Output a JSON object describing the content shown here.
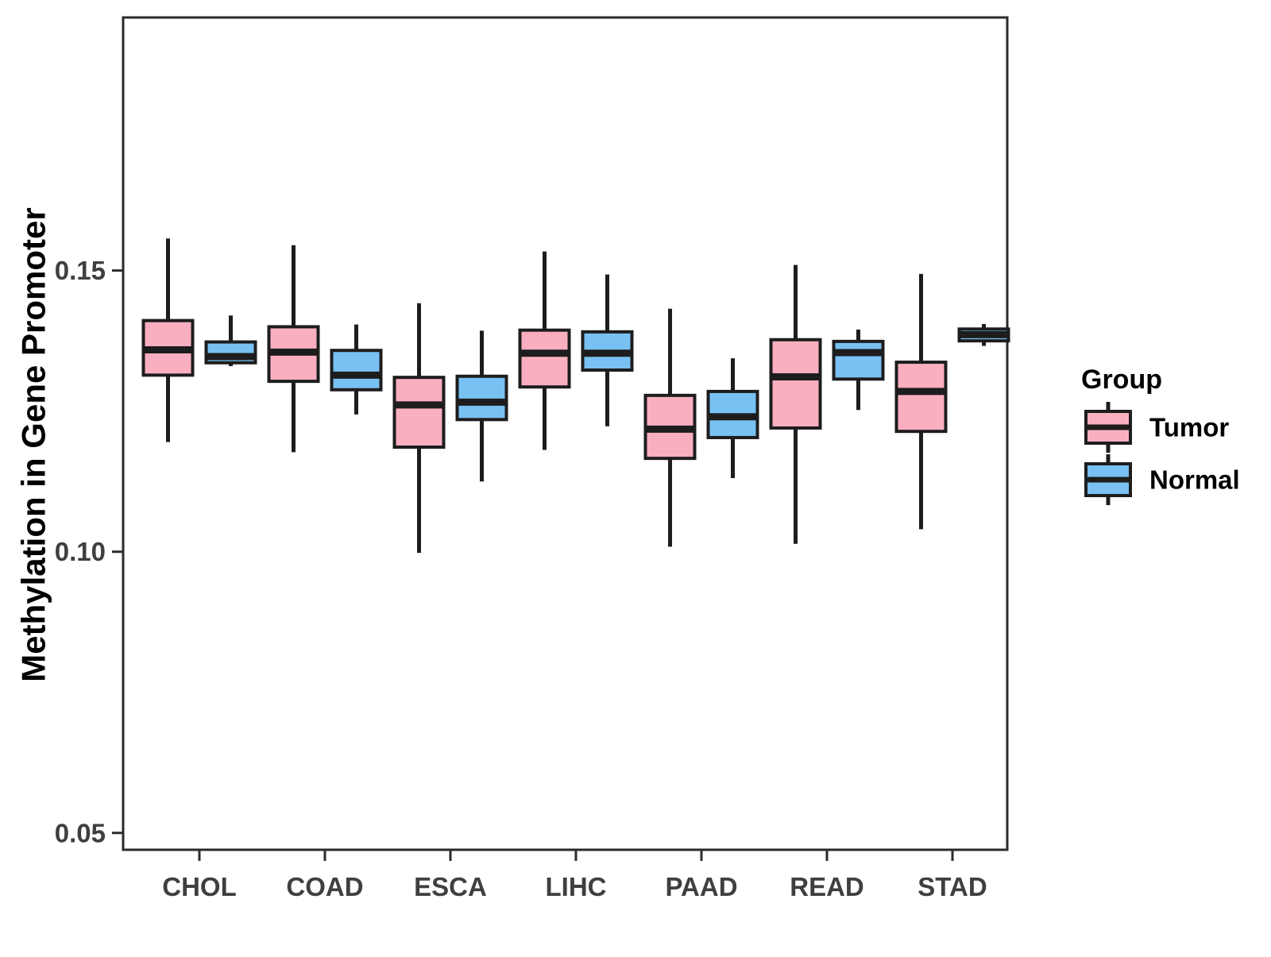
{
  "chart_data": {
    "type": "boxplot",
    "title": "",
    "xlabel": "",
    "ylabel": "Methylation in Gene Promoter",
    "categories": [
      "CHOL",
      "COAD",
      "ESCA",
      "LIHC",
      "PAAD",
      "READ",
      "STAD"
    ],
    "groups": [
      "Tumor",
      "Normal"
    ],
    "y_ticks": [
      0.15,
      0.1,
      0.05
    ],
    "ylim": [
      0.047,
      0.195
    ],
    "grid": false,
    "colors": {
      "tumor_fill": "#FAAFC1",
      "normal_fill": "#79C1F2",
      "line": "#1D1D1D",
      "panel_border": "#2B2B2B",
      "tick_text": "#3F3F3F"
    },
    "legend": {
      "title": "Group",
      "position": "right",
      "entries": [
        "Tumor",
        "Normal"
      ]
    },
    "series": [
      {
        "name": "Tumor",
        "fill": "#FAAFC1",
        "boxes": [
          {
            "category": "CHOL",
            "whisker_low": 0.1195,
            "q1": 0.1314,
            "median": 0.1359,
            "q3": 0.1411,
            "whisker_high": 0.1557
          },
          {
            "category": "COAD",
            "whisker_low": 0.1177,
            "q1": 0.1303,
            "median": 0.1355,
            "q3": 0.14,
            "whisker_high": 0.1545
          },
          {
            "category": "ESCA",
            "whisker_low": 0.0998,
            "q1": 0.1186,
            "median": 0.1261,
            "q3": 0.131,
            "whisker_high": 0.1442
          },
          {
            "category": "LIHC",
            "whisker_low": 0.1181,
            "q1": 0.1293,
            "median": 0.1353,
            "q3": 0.1394,
            "whisker_high": 0.1534
          },
          {
            "category": "PAAD",
            "whisker_low": 0.1009,
            "q1": 0.1166,
            "median": 0.1218,
            "q3": 0.1278,
            "whisker_high": 0.1432
          },
          {
            "category": "READ",
            "whisker_low": 0.1014,
            "q1": 0.122,
            "median": 0.1311,
            "q3": 0.1377,
            "whisker_high": 0.151
          },
          {
            "category": "STAD",
            "whisker_low": 0.104,
            "q1": 0.1214,
            "median": 0.1285,
            "q3": 0.1337,
            "whisker_high": 0.1494
          }
        ]
      },
      {
        "name": "Normal",
        "fill": "#79C1F2",
        "boxes": [
          {
            "category": "CHOL",
            "whisker_low": 0.133,
            "q1": 0.1336,
            "median": 0.1347,
            "q3": 0.1373,
            "whisker_high": 0.142
          },
          {
            "category": "COAD",
            "whisker_low": 0.1244,
            "q1": 0.1288,
            "median": 0.1314,
            "q3": 0.1358,
            "whisker_high": 0.1404
          },
          {
            "category": "ESCA",
            "whisker_low": 0.1125,
            "q1": 0.1235,
            "median": 0.1266,
            "q3": 0.1312,
            "whisker_high": 0.1393
          },
          {
            "category": "LIHC",
            "whisker_low": 0.1223,
            "q1": 0.1323,
            "median": 0.1353,
            "q3": 0.1391,
            "whisker_high": 0.1493
          },
          {
            "category": "PAAD",
            "whisker_low": 0.1131,
            "q1": 0.1203,
            "median": 0.124,
            "q3": 0.1285,
            "whisker_high": 0.1344
          },
          {
            "category": "READ",
            "whisker_low": 0.1252,
            "q1": 0.1307,
            "median": 0.1354,
            "q3": 0.1374,
            "whisker_high": 0.1395
          },
          {
            "category": "STAD",
            "whisker_low": 0.1366,
            "q1": 0.1375,
            "median": 0.1386,
            "q3": 0.1396,
            "whisker_high": 0.1405
          }
        ]
      }
    ]
  }
}
